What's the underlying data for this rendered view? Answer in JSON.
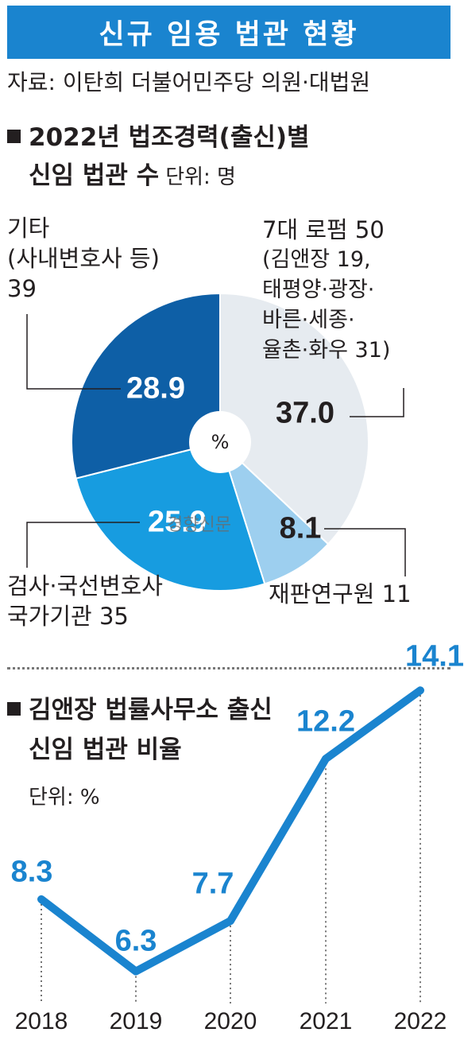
{
  "title": "신규 임용 법관 현황",
  "source": "자료: 이탄희 더불어민주당 의원·대법원",
  "pie_section": {
    "title_line1": "2022년 법조경력(출신)별",
    "title_line2": "신임 법관 수",
    "unit": "단위: 명",
    "center_label": "%",
    "watermark": "경향신문",
    "labels": {
      "lawfirm": {
        "line1": "7대 로펌 50",
        "line2": "(김앤장 19,",
        "line3": "태평양·광장·",
        "line4": "바른·세종·",
        "line5": "율촌·화우 31)"
      },
      "research": {
        "line1": "재판연구원 11"
      },
      "prosecutor": {
        "line1": "검사·국선변호사",
        "line2": "국가기관 35"
      },
      "other": {
        "line1": "기타",
        "line2": "(사내변호사 등)",
        "line3": "39"
      }
    }
  },
  "line_section": {
    "title_line1": "김앤장 법률사무소 출신",
    "title_line2": "신임 법관 비율",
    "unit": "단위: %"
  },
  "chart_data": [
    {
      "type": "pie",
      "values_percent": [
        37.0,
        8.1,
        25.9,
        28.9
      ],
      "value_labels": [
        "37.0",
        "8.1",
        "25.9",
        "28.9"
      ],
      "counts": [
        50,
        11,
        35,
        39
      ],
      "colors": [
        "#e6ebf0",
        "#9dcfef",
        "#179ce0",
        "#0e5fa6"
      ]
    },
    {
      "type": "line",
      "x": [
        "2018",
        "2019",
        "2020",
        "2021",
        "2022"
      ],
      "values": [
        8.3,
        6.3,
        7.7,
        12.2,
        14.1
      ],
      "value_labels": [
        "8.3",
        "6.3",
        "7.7",
        "12.2",
        "14.1"
      ],
      "color": "#1a84cf"
    }
  ]
}
